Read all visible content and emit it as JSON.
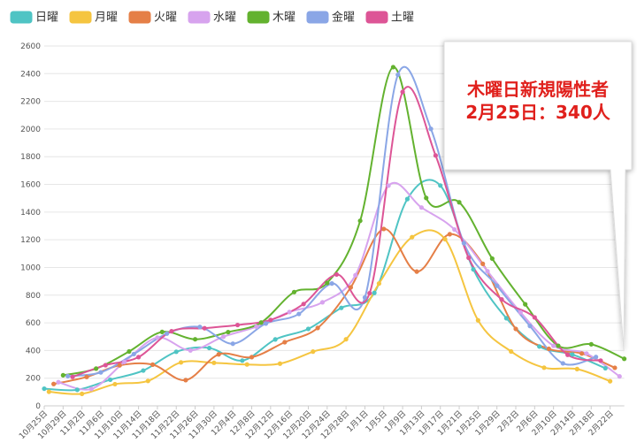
{
  "chart_data": {
    "type": "line",
    "categories": [
      "10月25日",
      null,
      null,
      null,
      "10月29日",
      null,
      null,
      null,
      "11月2日",
      null,
      null,
      null,
      "11月6日",
      null,
      null,
      null,
      "11月10日",
      null,
      null,
      null,
      "11月14日",
      null,
      null,
      null,
      "11月18日",
      null,
      null,
      null,
      "11月22日",
      null,
      null,
      null,
      "11月26日",
      null,
      null,
      null,
      "11月30日",
      null,
      null,
      null,
      "12月4日",
      null,
      null,
      null,
      "12月8日",
      null,
      null,
      null,
      "12月12日",
      null,
      null,
      null,
      "12月16日",
      null,
      null,
      null,
      "12月20日",
      null,
      null,
      null,
      "12月24日",
      null,
      null,
      null,
      "12月28日",
      null,
      null,
      null,
      "1月1日",
      null,
      null,
      null,
      "1月5日",
      null,
      null,
      null,
      "1月9日",
      null,
      null,
      null,
      "1月13日",
      null,
      null,
      null,
      "1月17日",
      null,
      null,
      null,
      "1月21日",
      null,
      null,
      null,
      "1月25日",
      null,
      null,
      null,
      "1月29日",
      null,
      null,
      null,
      "2月2日",
      null,
      null,
      null,
      "2月6日",
      null,
      null,
      null,
      "2月10日",
      null,
      null,
      null,
      "2月14日",
      null,
      null,
      null,
      "2月18日",
      null,
      null,
      null,
      "2月22日",
      null,
      null,
      null
    ],
    "series": [
      {
        "name": "日曜",
        "color": "#4fc4c4",
        "values": [
          124,
          null,
          null,
          null,
          null,
          null,
          null,
          116,
          null,
          null,
          null,
          null,
          null,
          null,
          189,
          null,
          null,
          null,
          null,
          null,
          null,
          255,
          null,
          null,
          null,
          null,
          null,
          null,
          391,
          null,
          null,
          null,
          null,
          null,
          null,
          418,
          null,
          null,
          null,
          null,
          null,
          null,
          327,
          null,
          null,
          null,
          null,
          null,
          null,
          480,
          null,
          null,
          null,
          null,
          null,
          null,
          556,
          null,
          null,
          null,
          null,
          null,
          null,
          708,
          null,
          null,
          null,
          null,
          null,
          null,
          816,
          null,
          null,
          null,
          null,
          null,
          null,
          1494,
          null,
          null,
          null,
          null,
          null,
          null,
          1592,
          null,
          null,
          null,
          null,
          null,
          null,
          986,
          null,
          null,
          null,
          null,
          null,
          null,
          633,
          null,
          null,
          null,
          null,
          null,
          null,
          429,
          null,
          null,
          null,
          null,
          null,
          null,
          371,
          null,
          null,
          null,
          null,
          null,
          null,
          272,
          null,
          null,
          null,
          null
        ]
      },
      {
        "name": "月曜",
        "color": "#f5c540",
        "values": [
          null,
          102,
          null,
          null,
          null,
          null,
          null,
          null,
          87,
          null,
          null,
          null,
          null,
          null,
          null,
          157,
          null,
          null,
          null,
          null,
          null,
          null,
          180,
          null,
          null,
          null,
          null,
          null,
          null,
          314,
          null,
          null,
          null,
          null,
          null,
          null,
          311,
          null,
          null,
          null,
          null,
          null,
          null,
          299,
          null,
          null,
          null,
          null,
          null,
          null,
          305,
          null,
          null,
          null,
          null,
          null,
          null,
          392,
          null,
          null,
          null,
          null,
          null,
          null,
          481,
          null,
          null,
          null,
          null,
          null,
          null,
          884,
          null,
          null,
          null,
          null,
          null,
          null,
          1219,
          null,
          null,
          null,
          null,
          null,
          null,
          1204,
          null,
          null,
          null,
          null,
          null,
          null,
          618,
          null,
          null,
          null,
          null,
          null,
          null,
          393,
          null,
          null,
          null,
          null,
          null,
          null,
          276,
          null,
          null,
          null,
          null,
          null,
          null,
          266,
          null,
          null,
          null,
          null,
          null,
          null,
          178,
          null,
          null,
          null
        ]
      },
      {
        "name": "火曜",
        "color": "#e57f47",
        "values": [
          null,
          null,
          158,
          null,
          null,
          null,
          null,
          null,
          null,
          209,
          null,
          null,
          null,
          null,
          null,
          null,
          293,
          null,
          null,
          null,
          null,
          null,
          null,
          298,
          null,
          null,
          null,
          null,
          null,
          null,
          186,
          null,
          null,
          null,
          null,
          null,
          null,
          372,
          null,
          null,
          null,
          null,
          null,
          null,
          352,
          null,
          null,
          null,
          null,
          null,
          null,
          460,
          null,
          null,
          null,
          null,
          null,
          null,
          563,
          null,
          null,
          null,
          null,
          null,
          null,
          856,
          null,
          null,
          null,
          null,
          null,
          null,
          1278,
          null,
          null,
          null,
          null,
          null,
          null,
          970,
          null,
          null,
          null,
          null,
          null,
          null,
          1240,
          null,
          null,
          null,
          null,
          null,
          null,
          1026,
          null,
          null,
          null,
          null,
          null,
          null,
          556,
          null,
          null,
          null,
          null,
          null,
          null,
          412,
          null,
          null,
          null,
          null,
          null,
          null,
          378,
          null,
          null,
          null,
          null,
          null,
          null,
          275,
          null,
          null
        ]
      },
      {
        "name": "水曜",
        "color": "#d7a3ee",
        "values": [
          null,
          null,
          null,
          171,
          null,
          null,
          null,
          null,
          null,
          null,
          122,
          null,
          null,
          null,
          null,
          null,
          null,
          317,
          null,
          null,
          null,
          null,
          null,
          null,
          493,
          null,
          null,
          null,
          null,
          null,
          null,
          401,
          null,
          null,
          null,
          null,
          null,
          null,
          500,
          null,
          null,
          null,
          null,
          null,
          null,
          572,
          null,
          null,
          null,
          null,
          null,
          null,
          678,
          null,
          null,
          null,
          null,
          null,
          null,
          748,
          null,
          null,
          null,
          null,
          null,
          null,
          944,
          null,
          null,
          null,
          null,
          null,
          null,
          1591,
          null,
          null,
          null,
          null,
          null,
          null,
          1433,
          null,
          null,
          null,
          null,
          null,
          null,
          1274,
          null,
          null,
          null,
          null,
          null,
          null,
          973,
          null,
          null,
          null,
          null,
          null,
          null,
          676,
          null,
          null,
          null,
          null,
          null,
          null,
          434,
          null,
          null,
          null,
          null,
          null,
          null,
          378,
          null,
          null,
          null,
          null,
          null,
          null,
          213,
          null
        ]
      },
      {
        "name": "木曜",
        "color": "#63b22f",
        "values": [
          null,
          null,
          null,
          null,
          221,
          null,
          null,
          null,
          null,
          null,
          null,
          269,
          null,
          null,
          null,
          null,
          null,
          null,
          393,
          null,
          null,
          null,
          null,
          null,
          null,
          534,
          null,
          null,
          null,
          null,
          null,
          null,
          481,
          null,
          null,
          null,
          null,
          null,
          null,
          533,
          null,
          null,
          null,
          null,
          null,
          null,
          602,
          null,
          null,
          null,
          null,
          null,
          null,
          822,
          null,
          null,
          null,
          null,
          null,
          null,
          888,
          null,
          null,
          null,
          null,
          null,
          null,
          1337,
          null,
          null,
          null,
          null,
          null,
          null,
          2447,
          null,
          null,
          null,
          null,
          null,
          null,
          1502,
          null,
          null,
          null,
          null,
          null,
          null,
          1471,
          null,
          null,
          null,
          null,
          null,
          null,
          1064,
          null,
          null,
          null,
          null,
          null,
          null,
          734,
          null,
          null,
          null,
          null,
          null,
          null,
          434,
          null,
          null,
          null,
          null,
          null,
          null,
          445,
          null,
          null,
          null,
          null,
          null,
          null,
          340
        ]
      },
      {
        "name": "金曜",
        "color": "#8aa6e6",
        "values": [
          null,
          null,
          null,
          null,
          null,
          215,
          null,
          null,
          null,
          null,
          null,
          null,
          242,
          null,
          null,
          null,
          null,
          null,
          null,
          374,
          null,
          null,
          null,
          null,
          null,
          null,
          522,
          null,
          null,
          null,
          null,
          null,
          null,
          570,
          null,
          null,
          null,
          null,
          null,
          null,
          449,
          null,
          null,
          null,
          null,
          null,
          null,
          595,
          null,
          null,
          null,
          null,
          null,
          null,
          664,
          null,
          null,
          null,
          null,
          null,
          null,
          884,
          null,
          null,
          null,
          null,
          null,
          null,
          783,
          null,
          null,
          null,
          null,
          null,
          null,
          2392,
          null,
          null,
          null,
          null,
          null,
          null,
          2001,
          null,
          null,
          null,
          null,
          null,
          null,
          1175,
          null,
          null,
          null,
          null,
          null,
          null,
          868,
          null,
          null,
          null,
          null,
          null,
          null,
          577,
          null,
          null,
          null,
          null,
          null,
          null,
          307,
          null,
          null,
          null,
          null,
          null,
          null,
          353,
          null,
          null,
          null,
          null,
          null,
          null
        ]
      },
      {
        "name": "土曜",
        "color": "#dd5596",
        "values": [
          null,
          null,
          null,
          null,
          null,
          null,
          209,
          null,
          null,
          null,
          null,
          null,
          null,
          294,
          null,
          null,
          null,
          null,
          null,
          null,
          352,
          null,
          null,
          null,
          null,
          null,
          null,
          539,
          null,
          null,
          null,
          null,
          null,
          null,
          561,
          null,
          null,
          null,
          null,
          null,
          null,
          584,
          null,
          null,
          null,
          null,
          null,
          null,
          621,
          null,
          null,
          null,
          null,
          null,
          null,
          736,
          null,
          null,
          null,
          null,
          null,
          null,
          949,
          null,
          null,
          null,
          null,
          null,
          null,
          814,
          null,
          null,
          null,
          null,
          null,
          null,
          2268,
          null,
          null,
          null,
          null,
          null,
          null,
          1809,
          null,
          null,
          null,
          null,
          null,
          null,
          1070,
          null,
          null,
          null,
          null,
          null,
          null,
          769,
          null,
          null,
          null,
          null,
          null,
          null,
          639,
          null,
          null,
          null,
          null,
          null,
          null,
          369,
          null,
          null,
          null,
          null,
          null,
          null,
          327,
          null,
          null,
          null,
          null,
          null
        ]
      }
    ],
    "ylim": [
      0,
      2600
    ],
    "yticks": [
      0,
      200,
      400,
      600,
      800,
      1000,
      1200,
      1400,
      1600,
      1800,
      2000,
      2200,
      2400,
      2600
    ],
    "grid": true,
    "legend": "top-left",
    "annotations": [
      "木曜日新規陽性者",
      "2月25日：340人"
    ]
  }
}
